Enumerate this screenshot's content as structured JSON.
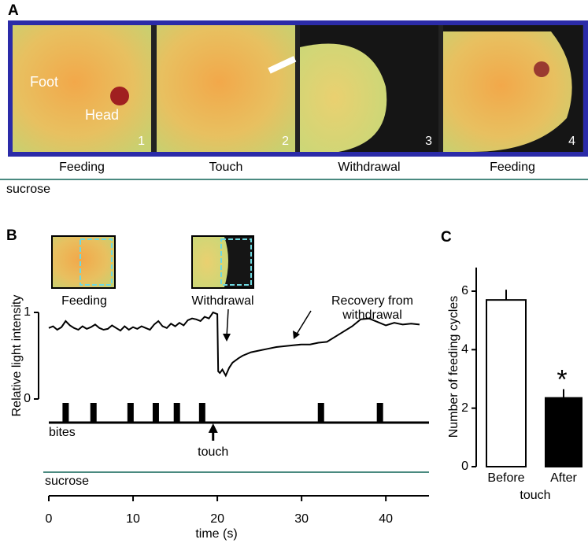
{
  "panel_labels": [
    "A",
    "B",
    "C"
  ],
  "photo_strip": {
    "labels": [
      "Foot",
      "Head"
    ],
    "panels": [
      {
        "number": 1,
        "caption": "Feeding"
      },
      {
        "number": 2,
        "caption": "Touch"
      },
      {
        "number": 3,
        "caption": "Withdrawal"
      },
      {
        "number": 4,
        "caption": "Feeding"
      }
    ],
    "condition": "sucrose"
  },
  "chart_data": [
    {
      "type": "line",
      "y_label": "Relative light intensity",
      "x_label": "time (s)",
      "xlim": [
        0,
        44
      ],
      "xticks": [
        0,
        10,
        20,
        30,
        40
      ],
      "ylim": [
        0,
        1
      ],
      "yticks": [
        0,
        1
      ],
      "color": "#000000",
      "x": [
        0,
        0.5,
        1,
        1.5,
        2,
        2.5,
        3,
        3.5,
        4,
        4.5,
        5,
        5.5,
        6,
        6.5,
        7,
        7.5,
        8,
        8.5,
        9,
        9.5,
        10,
        10.5,
        11,
        11.5,
        12,
        12.5,
        13,
        13.5,
        14,
        14.5,
        15,
        15.5,
        16,
        16.5,
        17,
        17.5,
        18,
        18.5,
        19,
        19.5,
        20,
        20.1,
        20.3,
        20.6,
        21,
        21.4,
        21.8,
        22.5,
        23,
        24,
        25,
        26,
        27,
        28,
        29,
        30,
        31,
        32,
        33,
        34,
        35,
        36,
        37,
        38,
        39,
        40,
        41,
        42,
        43,
        44
      ],
      "values": [
        0.82,
        0.84,
        0.8,
        0.83,
        0.9,
        0.85,
        0.82,
        0.8,
        0.84,
        0.81,
        0.83,
        0.86,
        0.82,
        0.8,
        0.81,
        0.85,
        0.82,
        0.79,
        0.84,
        0.8,
        0.83,
        0.81,
        0.84,
        0.82,
        0.8,
        0.86,
        0.9,
        0.84,
        0.82,
        0.87,
        0.84,
        0.88,
        0.85,
        0.91,
        0.93,
        0.92,
        0.9,
        0.95,
        0.93,
        1.0,
        0.98,
        0.32,
        0.3,
        0.34,
        0.27,
        0.36,
        0.42,
        0.47,
        0.5,
        0.54,
        0.56,
        0.58,
        0.6,
        0.61,
        0.62,
        0.63,
        0.63,
        0.65,
        0.66,
        0.72,
        0.78,
        0.84,
        0.92,
        0.93,
        0.89,
        0.85,
        0.88,
        0.86,
        0.87,
        0.86
      ],
      "events": {
        "name": "bites",
        "x": [
          2,
          5.3,
          9.7,
          12.7,
          15.2,
          18.2,
          32.3,
          39.3
        ]
      },
      "stimulus": {
        "label": "touch",
        "x": 19.5
      },
      "condition": "sucrose",
      "annotations": [
        "Feeding",
        "Withdrawal",
        "Recovery from withdrawal"
      ]
    },
    {
      "type": "bar",
      "y_label": "Number of feeding cycles",
      "x_label": "touch",
      "categories": [
        "Before",
        "After"
      ],
      "values": [
        5.7,
        2.35
      ],
      "errors": [
        0.35,
        0.3
      ],
      "colors": [
        "#ffffff",
        "#000000"
      ],
      "ylim": [
        0,
        6
      ],
      "yticks": [
        0,
        2,
        4,
        6
      ],
      "significance": "*"
    }
  ]
}
